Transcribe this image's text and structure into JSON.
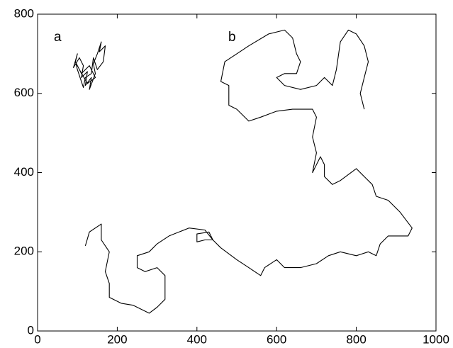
{
  "chart_data": {
    "type": "line",
    "annotations": [
      "a",
      "b"
    ],
    "series": [
      {
        "name": "a",
        "color": "#000000",
        "x": [
          95,
          100,
          90,
          105,
          115,
          110,
          125,
          120,
          135,
          130,
          145,
          140,
          150,
          160,
          155,
          170,
          165,
          150,
          140,
          135,
          120,
          115,
          105,
          100,
          95,
          110,
          130,
          145,
          125,
          105
        ],
        "y": [
          680,
          700,
          665,
          690,
          670,
          640,
          655,
          620,
          640,
          610,
          650,
          675,
          700,
          730,
          705,
          720,
          680,
          660,
          690,
          650,
          640,
          615,
          645,
          660,
          680,
          650,
          670,
          640,
          625,
          660
        ]
      },
      {
        "name": "b",
        "color": "#000000",
        "x": [
          120,
          130,
          160,
          160,
          180,
          170,
          180,
          180,
          210,
          240,
          280,
          300,
          320,
          320,
          300,
          270,
          250,
          250,
          280,
          300,
          330,
          380,
          420,
          440,
          420,
          400,
          400,
          430,
          440,
          460,
          500,
          530,
          560,
          570,
          600,
          620,
          660,
          700,
          730,
          760,
          800,
          830,
          850,
          860,
          880,
          930,
          940,
          910,
          880,
          850,
          840,
          820,
          800,
          760,
          740,
          720,
          720,
          710,
          690,
          700,
          690,
          700,
          690,
          640,
          600,
          560,
          530,
          500,
          480,
          480,
          460,
          470,
          500,
          530,
          580,
          620,
          640,
          650,
          660,
          650,
          620,
          600,
          620,
          660,
          700,
          720,
          740,
          750,
          760,
          780,
          800,
          820,
          830,
          820,
          810,
          820
        ],
        "y": [
          215,
          250,
          270,
          230,
          200,
          150,
          120,
          85,
          70,
          65,
          45,
          60,
          80,
          140,
          160,
          150,
          160,
          190,
          200,
          220,
          240,
          260,
          255,
          230,
          230,
          225,
          245,
          250,
          230,
          210,
          180,
          160,
          140,
          160,
          180,
          160,
          160,
          170,
          190,
          200,
          190,
          200,
          190,
          220,
          240,
          240,
          260,
          300,
          330,
          340,
          370,
          390,
          410,
          380,
          370,
          390,
          420,
          440,
          400,
          450,
          490,
          540,
          560,
          560,
          555,
          540,
          530,
          560,
          570,
          620,
          630,
          680,
          700,
          720,
          750,
          760,
          740,
          700,
          680,
          650,
          650,
          640,
          620,
          610,
          620,
          640,
          620,
          660,
          730,
          760,
          750,
          720,
          680,
          640,
          600,
          560
        ]
      }
    ],
    "xlim": [
      0,
      1000
    ],
    "xticks": [
      0,
      200,
      400,
      600,
      800,
      1000
    ],
    "ylim": [
      0,
      800
    ],
    "yticks": [
      0,
      200,
      400,
      600,
      800
    ]
  }
}
